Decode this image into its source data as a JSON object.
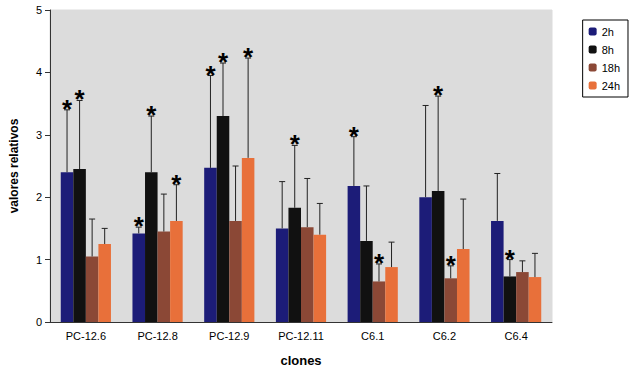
{
  "chart_data": {
    "type": "bar",
    "x_label": "clones",
    "y_label": "valores relativos",
    "categories": [
      "PC-12.6",
      "PC-12.8",
      "PC-12.9",
      "PC-12.11",
      "C6.1",
      "C6.2",
      "C6.4"
    ],
    "series": [
      {
        "name": "2h",
        "color": "#1c1c78",
        "values": [
          2.4,
          1.42,
          2.47,
          1.5,
          2.18,
          2.0,
          1.62
        ],
        "errors": [
          1.0,
          0.1,
          1.48,
          0.75,
          0.79,
          1.47,
          0.76
        ],
        "significant": [
          true,
          true,
          true,
          false,
          true,
          false,
          false
        ]
      },
      {
        "name": "8h",
        "color": "#111111",
        "values": [
          2.45,
          2.4,
          3.3,
          1.83,
          1.3,
          2.1,
          0.73
        ],
        "errors": [
          1.1,
          0.9,
          0.85,
          1.0,
          0.88,
          1.52,
          0.27
        ],
        "significant": [
          true,
          true,
          true,
          true,
          false,
          true,
          true
        ]
      },
      {
        "name": "18h",
        "color": "#8b4836",
        "values": [
          1.05,
          1.45,
          1.62,
          1.52,
          0.65,
          0.7,
          0.8
        ],
        "errors": [
          0.6,
          0.6,
          0.88,
          0.78,
          0.28,
          0.2,
          0.18
        ],
        "significant": [
          false,
          false,
          false,
          false,
          true,
          true,
          false
        ]
      },
      {
        "name": "24h",
        "color": "#e8703a",
        "values": [
          1.25,
          1.62,
          2.63,
          1.4,
          0.88,
          1.17,
          0.72
        ],
        "errors": [
          0.25,
          0.58,
          1.6,
          0.5,
          0.4,
          0.8,
          0.38
        ],
        "significant": [
          false,
          true,
          true,
          false,
          false,
          false,
          false
        ]
      }
    ],
    "annotation": "*",
    "ylim": [
      0,
      5
    ],
    "yticks": [
      0,
      1,
      2,
      3,
      4,
      5
    ],
    "grid": false,
    "legend": "upper right"
  }
}
